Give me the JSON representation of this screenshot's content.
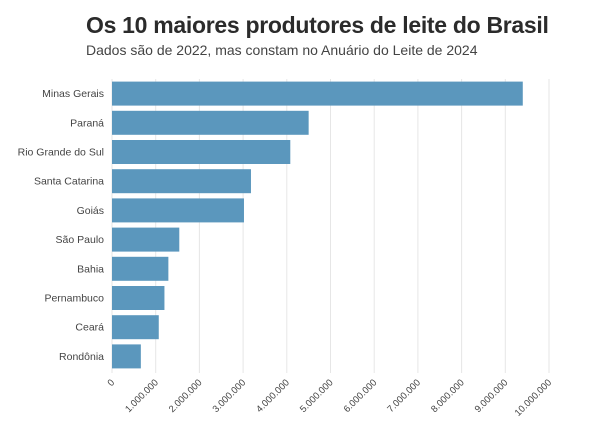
{
  "chart_data": {
    "type": "bar",
    "orientation": "horizontal",
    "title": "Os 10 maiores produtores de leite do Brasil",
    "subtitle": "Dados são de 2022, mas constam no Anuário do Leite de 2024",
    "categories": [
      "Minas Gerais",
      "Paraná",
      "Rio Grande do Sul",
      "Santa Catarina",
      "Goiás",
      "São Paulo",
      "Bahia",
      "Pernambuco",
      "Ceará",
      "Rondônia"
    ],
    "values": [
      9400000,
      4500000,
      4080000,
      3180000,
      3020000,
      1540000,
      1290000,
      1200000,
      1070000,
      660000
    ],
    "xlim": [
      0,
      10000000
    ],
    "x_ticks": [
      0,
      1000000,
      2000000,
      3000000,
      4000000,
      5000000,
      6000000,
      7000000,
      8000000,
      9000000,
      10000000
    ],
    "x_tick_labels": [
      "0",
      "1.000.000",
      "2.000.000",
      "3.000.000",
      "4.000.000",
      "5.000.000",
      "6.000.000",
      "7.000.000",
      "8.000.000",
      "9.000.000",
      "10.000.000"
    ],
    "grid": true,
    "legend": "none",
    "bar_color": "#5b97bd"
  }
}
